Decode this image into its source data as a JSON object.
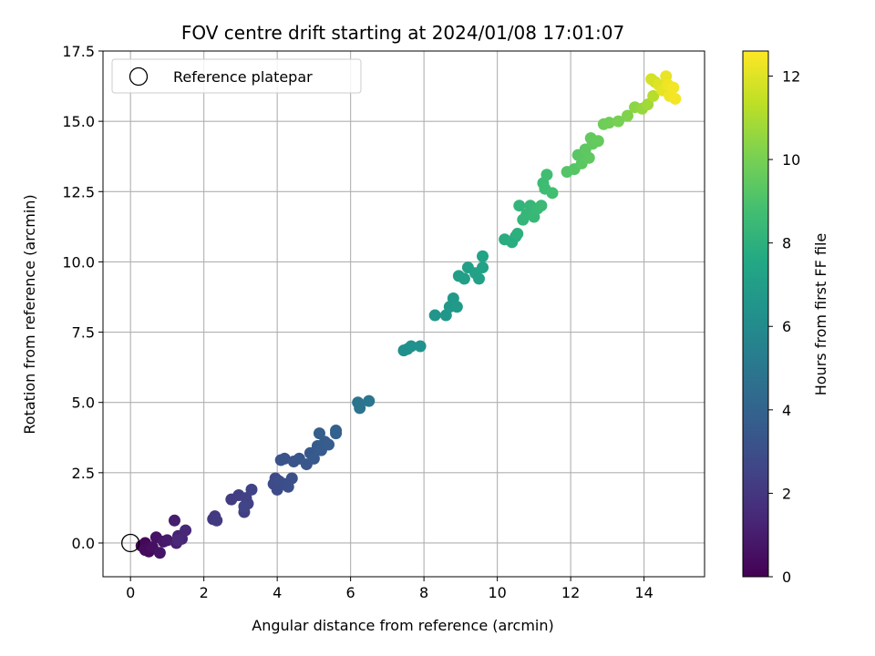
{
  "chart_data": {
    "type": "scatter",
    "title": "FOV centre drift starting at 2024/01/08 17:01:07",
    "xlabel": "Angular distance from reference (arcmin)",
    "ylabel": "Rotation from reference (arcmin)",
    "xlim": [
      -0.75,
      15.65
    ],
    "ylim": [
      -1.2,
      17.5
    ],
    "xticks": [
      0,
      2,
      4,
      6,
      8,
      10,
      12,
      14
    ],
    "xtick_labels": [
      "0",
      "2",
      "4",
      "6",
      "8",
      "10",
      "12",
      "14"
    ],
    "yticks": [
      0.0,
      2.5,
      5.0,
      7.5,
      10.0,
      12.5,
      15.0,
      17.5
    ],
    "ytick_labels": [
      "0.0",
      "2.5",
      "5.0",
      "7.5",
      "10.0",
      "12.5",
      "15.0",
      "17.5"
    ],
    "grid": true,
    "legend": {
      "placement": "top-left",
      "entries": [
        "Reference platepar"
      ]
    },
    "reference_point": {
      "x": 0,
      "y": 0
    },
    "colorbar": {
      "label": "Hours from first FF file",
      "range": [
        0,
        12.6
      ],
      "ticks": [
        0,
        2,
        4,
        6,
        8,
        10,
        12
      ],
      "tick_labels": [
        "0",
        "2",
        "4",
        "6",
        "8",
        "10",
        "12"
      ],
      "colormap": "viridis",
      "colors": [
        "#440154",
        "#482475",
        "#414487",
        "#355f8d",
        "#2a788e",
        "#21918c",
        "#22a884",
        "#44bf70",
        "#7ad151",
        "#bddf26",
        "#fde725"
      ]
    },
    "points": [
      {
        "x": 0.3,
        "y": -0.1,
        "h": 0.1
      },
      {
        "x": 0.4,
        "y": 0.0,
        "h": 0.2
      },
      {
        "x": 0.5,
        "y": -0.3,
        "h": 0.3
      },
      {
        "x": 0.4,
        "y": -0.25,
        "h": 0.4
      },
      {
        "x": 0.6,
        "y": -0.15,
        "h": 0.5
      },
      {
        "x": 0.7,
        "y": 0.2,
        "h": 0.6
      },
      {
        "x": 0.8,
        "y": -0.35,
        "h": 0.7
      },
      {
        "x": 0.9,
        "y": 0.05,
        "h": 0.8
      },
      {
        "x": 1.0,
        "y": 0.1,
        "h": 0.9
      },
      {
        "x": 1.2,
        "y": 0.8,
        "h": 1.0
      },
      {
        "x": 1.25,
        "y": 0.0,
        "h": 1.1
      },
      {
        "x": 1.3,
        "y": 0.25,
        "h": 1.2
      },
      {
        "x": 1.4,
        "y": 0.15,
        "h": 1.3
      },
      {
        "x": 1.5,
        "y": 0.45,
        "h": 1.4
      },
      {
        "x": 1.3,
        "y": 0.1,
        "h": 1.45
      },
      {
        "x": 2.25,
        "y": 0.85,
        "h": 2.0
      },
      {
        "x": 2.3,
        "y": 0.95,
        "h": 2.1
      },
      {
        "x": 2.35,
        "y": 0.8,
        "h": 2.15
      },
      {
        "x": 2.75,
        "y": 1.55,
        "h": 2.2
      },
      {
        "x": 2.95,
        "y": 1.7,
        "h": 2.3
      },
      {
        "x": 3.1,
        "y": 1.1,
        "h": 2.35
      },
      {
        "x": 3.15,
        "y": 1.6,
        "h": 2.4
      },
      {
        "x": 3.2,
        "y": 1.4,
        "h": 2.45
      },
      {
        "x": 3.3,
        "y": 1.9,
        "h": 2.5
      },
      {
        "x": 3.1,
        "y": 1.3,
        "h": 2.55
      },
      {
        "x": 3.95,
        "y": 2.3,
        "h": 2.8
      },
      {
        "x": 3.9,
        "y": 2.1,
        "h": 2.85
      },
      {
        "x": 4.0,
        "y": 1.9,
        "h": 2.9
      },
      {
        "x": 4.05,
        "y": 2.2,
        "h": 2.95
      },
      {
        "x": 4.2,
        "y": 2.1,
        "h": 3.0
      },
      {
        "x": 4.3,
        "y": 2.0,
        "h": 3.05
      },
      {
        "x": 4.4,
        "y": 2.3,
        "h": 3.1
      },
      {
        "x": 4.1,
        "y": 2.95,
        "h": 3.2
      },
      {
        "x": 4.2,
        "y": 3.0,
        "h": 3.25
      },
      {
        "x": 4.45,
        "y": 2.9,
        "h": 3.3
      },
      {
        "x": 4.6,
        "y": 3.0,
        "h": 3.35
      },
      {
        "x": 4.8,
        "y": 2.8,
        "h": 3.4
      },
      {
        "x": 4.9,
        "y": 3.2,
        "h": 3.45
      },
      {
        "x": 5.0,
        "y": 3.0,
        "h": 3.5
      },
      {
        "x": 5.1,
        "y": 3.45,
        "h": 3.55
      },
      {
        "x": 5.2,
        "y": 3.3,
        "h": 3.6
      },
      {
        "x": 5.3,
        "y": 3.6,
        "h": 3.65
      },
      {
        "x": 5.4,
        "y": 3.5,
        "h": 3.7
      },
      {
        "x": 5.15,
        "y": 3.9,
        "h": 3.75
      },
      {
        "x": 5.6,
        "y": 4.0,
        "h": 3.85
      },
      {
        "x": 5.6,
        "y": 3.9,
        "h": 3.9
      },
      {
        "x": 6.2,
        "y": 5.0,
        "h": 4.8
      },
      {
        "x": 6.25,
        "y": 4.8,
        "h": 4.85
      },
      {
        "x": 6.5,
        "y": 5.05,
        "h": 4.9
      },
      {
        "x": 7.45,
        "y": 6.85,
        "h": 6.2
      },
      {
        "x": 7.55,
        "y": 6.9,
        "h": 6.25
      },
      {
        "x": 7.65,
        "y": 7.0,
        "h": 6.3
      },
      {
        "x": 7.9,
        "y": 7.0,
        "h": 6.35
      },
      {
        "x": 8.3,
        "y": 8.1,
        "h": 6.6
      },
      {
        "x": 8.6,
        "y": 8.1,
        "h": 6.65
      },
      {
        "x": 8.7,
        "y": 8.4,
        "h": 6.7
      },
      {
        "x": 8.8,
        "y": 8.7,
        "h": 6.75
      },
      {
        "x": 8.9,
        "y": 8.4,
        "h": 6.8
      },
      {
        "x": 8.95,
        "y": 9.5,
        "h": 7.0
      },
      {
        "x": 9.1,
        "y": 9.4,
        "h": 7.05
      },
      {
        "x": 9.2,
        "y": 9.8,
        "h": 7.1
      },
      {
        "x": 9.4,
        "y": 9.6,
        "h": 7.15
      },
      {
        "x": 9.5,
        "y": 9.4,
        "h": 7.2
      },
      {
        "x": 9.6,
        "y": 9.8,
        "h": 7.25
      },
      {
        "x": 9.6,
        "y": 10.2,
        "h": 7.3
      },
      {
        "x": 10.2,
        "y": 10.8,
        "h": 7.8
      },
      {
        "x": 10.4,
        "y": 10.7,
        "h": 7.85
      },
      {
        "x": 10.5,
        "y": 10.9,
        "h": 7.9
      },
      {
        "x": 10.55,
        "y": 11.0,
        "h": 7.95
      },
      {
        "x": 10.6,
        "y": 12.0,
        "h": 8.2
      },
      {
        "x": 10.7,
        "y": 11.5,
        "h": 8.25
      },
      {
        "x": 10.8,
        "y": 11.7,
        "h": 8.3
      },
      {
        "x": 10.9,
        "y": 12.0,
        "h": 8.35
      },
      {
        "x": 11.0,
        "y": 11.6,
        "h": 8.4
      },
      {
        "x": 11.1,
        "y": 11.9,
        "h": 8.45
      },
      {
        "x": 11.2,
        "y": 12.0,
        "h": 8.5
      },
      {
        "x": 11.25,
        "y": 12.8,
        "h": 8.6
      },
      {
        "x": 11.3,
        "y": 12.6,
        "h": 8.65
      },
      {
        "x": 11.35,
        "y": 13.1,
        "h": 8.7
      },
      {
        "x": 11.5,
        "y": 12.45,
        "h": 8.75
      },
      {
        "x": 11.9,
        "y": 13.2,
        "h": 9.2
      },
      {
        "x": 12.1,
        "y": 13.3,
        "h": 9.25
      },
      {
        "x": 12.2,
        "y": 13.8,
        "h": 9.3
      },
      {
        "x": 12.3,
        "y": 13.5,
        "h": 9.35
      },
      {
        "x": 12.4,
        "y": 14.0,
        "h": 9.4
      },
      {
        "x": 12.5,
        "y": 13.7,
        "h": 9.45
      },
      {
        "x": 12.55,
        "y": 14.4,
        "h": 9.5
      },
      {
        "x": 12.6,
        "y": 14.2,
        "h": 9.55
      },
      {
        "x": 12.75,
        "y": 14.3,
        "h": 9.6
      },
      {
        "x": 12.9,
        "y": 14.9,
        "h": 9.8
      },
      {
        "x": 13.05,
        "y": 14.95,
        "h": 9.85
      },
      {
        "x": 13.3,
        "y": 15.0,
        "h": 10.0
      },
      {
        "x": 13.55,
        "y": 15.2,
        "h": 10.2
      },
      {
        "x": 13.75,
        "y": 15.5,
        "h": 10.4
      },
      {
        "x": 13.95,
        "y": 15.45,
        "h": 10.6
      },
      {
        "x": 14.1,
        "y": 15.6,
        "h": 10.8
      },
      {
        "x": 14.25,
        "y": 15.9,
        "h": 11.2
      },
      {
        "x": 14.3,
        "y": 16.4,
        "h": 11.6
      },
      {
        "x": 14.2,
        "y": 16.5,
        "h": 11.8
      },
      {
        "x": 14.4,
        "y": 16.3,
        "h": 12.0
      },
      {
        "x": 14.5,
        "y": 16.1,
        "h": 12.1
      },
      {
        "x": 14.6,
        "y": 16.6,
        "h": 12.2
      },
      {
        "x": 14.65,
        "y": 16.3,
        "h": 12.3
      },
      {
        "x": 14.7,
        "y": 15.9,
        "h": 12.35
      },
      {
        "x": 14.8,
        "y": 16.2,
        "h": 12.4
      },
      {
        "x": 14.85,
        "y": 15.8,
        "h": 12.45
      }
    ]
  }
}
